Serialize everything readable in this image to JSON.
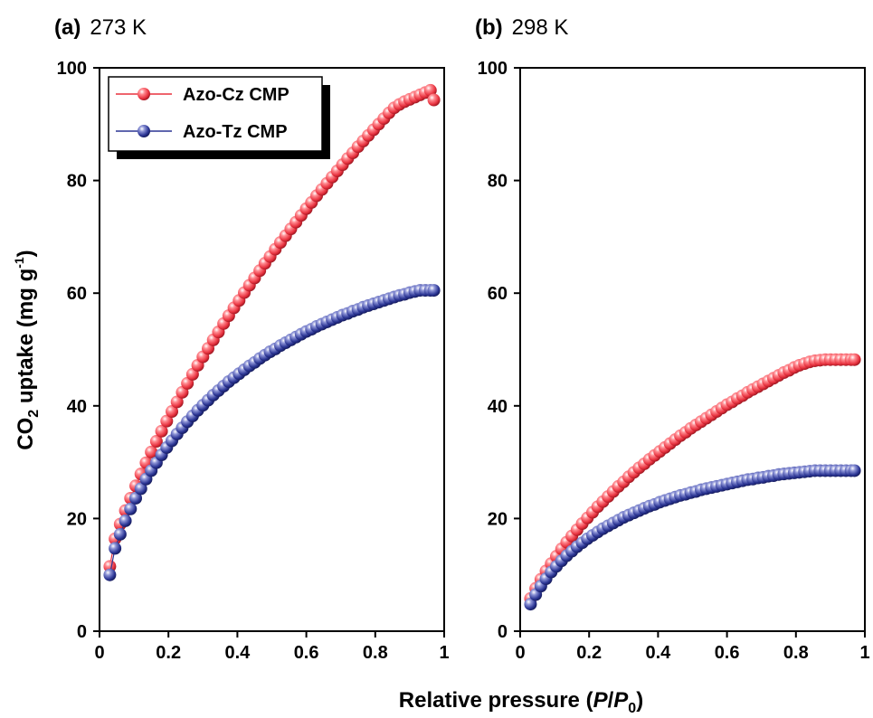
{
  "figure": {
    "xlabel_main": "Relative pressure (",
    "xlabel_italic_1": "P",
    "xlabel_slash": "/",
    "xlabel_italic_2": "P",
    "xlabel_sub": "0",
    "xlabel_close": ")",
    "ylabel_pre": "CO",
    "ylabel_sub": "2",
    "ylabel_mid": " uptake (mg g",
    "ylabel_sup": "-1",
    "ylabel_close": ")"
  },
  "colors": {
    "azo_cz": "#e8323f",
    "azo_tz": "#2b3594"
  },
  "chart_data": [
    {
      "type": "scatter",
      "panel_letter": "(a)",
      "title": "273 K",
      "xlim": [
        0,
        1
      ],
      "ylim": [
        0,
        100
      ],
      "x_ticks": [
        0,
        0.2,
        0.4,
        0.6,
        0.8,
        1
      ],
      "x_tick_labels": [
        "0",
        "0.2",
        "0.4",
        "0.6",
        "0.8",
        "1"
      ],
      "y_ticks": [
        0,
        20,
        40,
        60,
        80,
        100
      ],
      "y_tick_labels": [
        "0",
        "20",
        "40",
        "60",
        "80",
        "100"
      ],
      "legend_position": "top-left",
      "series": [
        {
          "name": "Azo-Cz CMP",
          "color": "#e8323f",
          "x": [
            0.03,
            0.045,
            0.06,
            0.075,
            0.09,
            0.105,
            0.12,
            0.135,
            0.15,
            0.165,
            0.18,
            0.195,
            0.21,
            0.225,
            0.24,
            0.255,
            0.27,
            0.285,
            0.3,
            0.315,
            0.33,
            0.345,
            0.36,
            0.375,
            0.39,
            0.405,
            0.42,
            0.435,
            0.45,
            0.465,
            0.48,
            0.495,
            0.51,
            0.525,
            0.54,
            0.555,
            0.57,
            0.585,
            0.6,
            0.615,
            0.63,
            0.645,
            0.66,
            0.675,
            0.69,
            0.705,
            0.72,
            0.735,
            0.75,
            0.765,
            0.78,
            0.795,
            0.81,
            0.825,
            0.84,
            0.855,
            0.87,
            0.885,
            0.9,
            0.915,
            0.93,
            0.945,
            0.96,
            0.97
          ],
          "y": [
            11.5,
            16.4,
            19.0,
            21.4,
            23.6,
            25.8,
            27.9,
            29.9,
            31.8,
            33.7,
            35.5,
            37.3,
            39.0,
            40.7,
            42.4,
            44.0,
            45.6,
            47.2,
            48.7,
            50.2,
            51.7,
            53.1,
            54.6,
            56.0,
            57.4,
            58.7,
            60.1,
            61.4,
            62.7,
            64.0,
            65.3,
            66.5,
            67.8,
            69.0,
            70.2,
            71.4,
            72.6,
            73.8,
            75.0,
            76.1,
            77.3,
            78.4,
            79.5,
            80.6,
            81.7,
            82.8,
            83.9,
            84.9,
            86.0,
            87.0,
            88.0,
            89.0,
            90.0,
            91.0,
            92.0,
            92.9,
            93.5,
            94.0,
            94.4,
            94.8,
            95.2,
            95.6,
            96.0,
            94.3
          ]
        },
        {
          "name": "Azo-Tz CMP",
          "color": "#2b3594",
          "x": [
            0.03,
            0.045,
            0.06,
            0.075,
            0.09,
            0.105,
            0.12,
            0.135,
            0.15,
            0.165,
            0.18,
            0.195,
            0.21,
            0.225,
            0.24,
            0.255,
            0.27,
            0.285,
            0.3,
            0.315,
            0.33,
            0.345,
            0.36,
            0.375,
            0.39,
            0.405,
            0.42,
            0.435,
            0.45,
            0.465,
            0.48,
            0.495,
            0.51,
            0.525,
            0.54,
            0.555,
            0.57,
            0.585,
            0.6,
            0.615,
            0.63,
            0.645,
            0.66,
            0.675,
            0.69,
            0.705,
            0.72,
            0.735,
            0.75,
            0.765,
            0.78,
            0.795,
            0.81,
            0.825,
            0.84,
            0.855,
            0.87,
            0.885,
            0.9,
            0.915,
            0.93,
            0.945,
            0.96,
            0.97
          ],
          "y": [
            10.0,
            14.7,
            17.2,
            19.6,
            21.7,
            23.6,
            25.3,
            27.0,
            28.5,
            29.9,
            31.3,
            32.6,
            33.8,
            35.0,
            36.1,
            37.2,
            38.2,
            39.2,
            40.1,
            41.0,
            41.9,
            42.7,
            43.5,
            44.3,
            45.0,
            45.7,
            46.4,
            47.1,
            47.7,
            48.4,
            49.0,
            49.6,
            50.1,
            50.7,
            51.2,
            51.7,
            52.2,
            52.7,
            53.2,
            53.6,
            54.1,
            54.5,
            54.9,
            55.3,
            55.7,
            56.1,
            56.4,
            56.8,
            57.1,
            57.5,
            57.8,
            58.1,
            58.4,
            58.7,
            59.0,
            59.3,
            59.6,
            59.8,
            60.1,
            60.3,
            60.5,
            60.5,
            60.5,
            60.5
          ]
        }
      ]
    },
    {
      "type": "scatter",
      "panel_letter": "(b)",
      "title": "298 K",
      "xlim": [
        0,
        1
      ],
      "ylim": [
        0,
        100
      ],
      "x_ticks": [
        0,
        0.2,
        0.4,
        0.6,
        0.8,
        1
      ],
      "x_tick_labels": [
        "0",
        "0.2",
        "0.4",
        "0.6",
        "0.8",
        "1"
      ],
      "y_ticks": [
        0,
        20,
        40,
        60,
        80,
        100
      ],
      "y_tick_labels": [
        "0",
        "20",
        "40",
        "60",
        "80",
        "100"
      ],
      "series": [
        {
          "name": "Azo-Cz CMP",
          "color": "#e8323f",
          "x": [
            0.03,
            0.045,
            0.06,
            0.075,
            0.09,
            0.105,
            0.12,
            0.135,
            0.15,
            0.165,
            0.18,
            0.195,
            0.21,
            0.225,
            0.24,
            0.255,
            0.27,
            0.285,
            0.3,
            0.315,
            0.33,
            0.345,
            0.36,
            0.375,
            0.39,
            0.405,
            0.42,
            0.435,
            0.45,
            0.465,
            0.48,
            0.495,
            0.51,
            0.525,
            0.54,
            0.555,
            0.57,
            0.585,
            0.6,
            0.615,
            0.63,
            0.645,
            0.66,
            0.675,
            0.69,
            0.705,
            0.72,
            0.735,
            0.75,
            0.765,
            0.78,
            0.795,
            0.81,
            0.825,
            0.84,
            0.855,
            0.87,
            0.885,
            0.9,
            0.915,
            0.93,
            0.945,
            0.96,
            0.97
          ],
          "y": [
            5.8,
            7.6,
            9.2,
            10.7,
            12.0,
            13.3,
            14.6,
            15.8,
            16.9,
            18.0,
            19.1,
            20.1,
            21.1,
            22.1,
            23.0,
            23.9,
            24.8,
            25.7,
            26.5,
            27.4,
            28.2,
            29.0,
            29.7,
            30.5,
            31.2,
            31.9,
            32.6,
            33.3,
            34.0,
            34.7,
            35.3,
            36.0,
            36.6,
            37.2,
            37.8,
            38.4,
            39.0,
            39.6,
            40.2,
            40.7,
            41.3,
            41.8,
            42.4,
            42.9,
            43.4,
            43.9,
            44.4,
            44.9,
            45.4,
            45.9,
            46.3,
            46.8,
            47.2,
            47.5,
            47.8,
            48.0,
            48.1,
            48.2,
            48.2,
            48.2,
            48.2,
            48.2,
            48.2,
            48.2
          ]
        },
        {
          "name": "Azo-Tz CMP",
          "color": "#2b3594",
          "x": [
            0.03,
            0.045,
            0.06,
            0.075,
            0.09,
            0.105,
            0.12,
            0.135,
            0.15,
            0.165,
            0.18,
            0.195,
            0.21,
            0.225,
            0.24,
            0.255,
            0.27,
            0.285,
            0.3,
            0.315,
            0.33,
            0.345,
            0.36,
            0.375,
            0.39,
            0.405,
            0.42,
            0.435,
            0.45,
            0.465,
            0.48,
            0.495,
            0.51,
            0.525,
            0.54,
            0.555,
            0.57,
            0.585,
            0.6,
            0.615,
            0.63,
            0.645,
            0.66,
            0.675,
            0.69,
            0.705,
            0.72,
            0.735,
            0.75,
            0.765,
            0.78,
            0.795,
            0.81,
            0.825,
            0.84,
            0.855,
            0.87,
            0.885,
            0.9,
            0.915,
            0.93,
            0.945,
            0.96,
            0.97
          ],
          "y": [
            4.8,
            6.5,
            8.0,
            9.3,
            10.5,
            11.5,
            12.5,
            13.4,
            14.2,
            15.0,
            15.7,
            16.4,
            17.0,
            17.6,
            18.2,
            18.7,
            19.2,
            19.7,
            20.2,
            20.6,
            21.0,
            21.4,
            21.8,
            22.2,
            22.5,
            22.9,
            23.2,
            23.5,
            23.8,
            24.1,
            24.3,
            24.6,
            24.8,
            25.1,
            25.3,
            25.5,
            25.7,
            25.9,
            26.1,
            26.3,
            26.5,
            26.7,
            26.9,
            27.0,
            27.2,
            27.3,
            27.5,
            27.6,
            27.8,
            27.9,
            28.0,
            28.1,
            28.2,
            28.3,
            28.4,
            28.5,
            28.5,
            28.5,
            28.5,
            28.5,
            28.5,
            28.5,
            28.5,
            28.5
          ]
        }
      ]
    }
  ]
}
